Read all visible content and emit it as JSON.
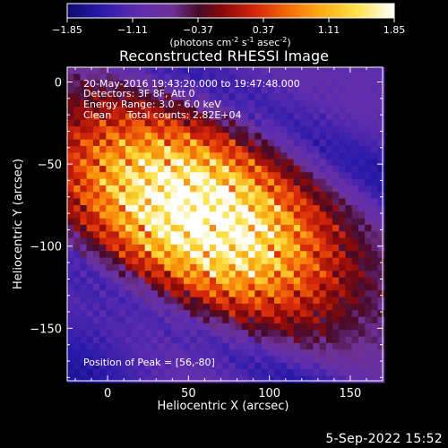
{
  "footer_timestamp": "5-Sep-2022 15:52",
  "colorbar": {
    "ticks": [
      "-1.85",
      "-1.11",
      "-0.37",
      "0.37",
      "1.11",
      "1.85"
    ],
    "min": -1.85,
    "max": 1.85,
    "units_main": "(photons cm",
    "units_exp1": "-2",
    "units_mid": " s",
    "units_exp2": "-1",
    "units_mid2": " asec",
    "units_exp3": "-2",
    "units_end": ")",
    "colormap": "purple-red-orange-yellow-white"
  },
  "chart_data": {
    "type": "heatmap",
    "title": "Reconstructed RHESSI Image",
    "xlabel": "Heliocentric X (arcsec)",
    "ylabel": "Heliocentric Y (arcsec)",
    "xlim": [
      -25,
      170
    ],
    "ylim": [
      -182,
      9
    ],
    "xticks": [
      0,
      50,
      100,
      150
    ],
    "yticks": [
      0,
      -50,
      -100,
      -150
    ],
    "annotations": [
      "20-May-2016 19:43:20.000 to 19:47:48.000",
      "Detectors: 3F 8F, Att 0",
      "Energy Range: 3.0 - 6.0 keV",
      "Clean     Total counts: 2.82E+04"
    ],
    "peak_label": "Position of Peak = [56,-80]",
    "peak": [
      56,
      -80
    ],
    "source_angle_deg": -28,
    "pixel_size_arcsec": 4
  }
}
